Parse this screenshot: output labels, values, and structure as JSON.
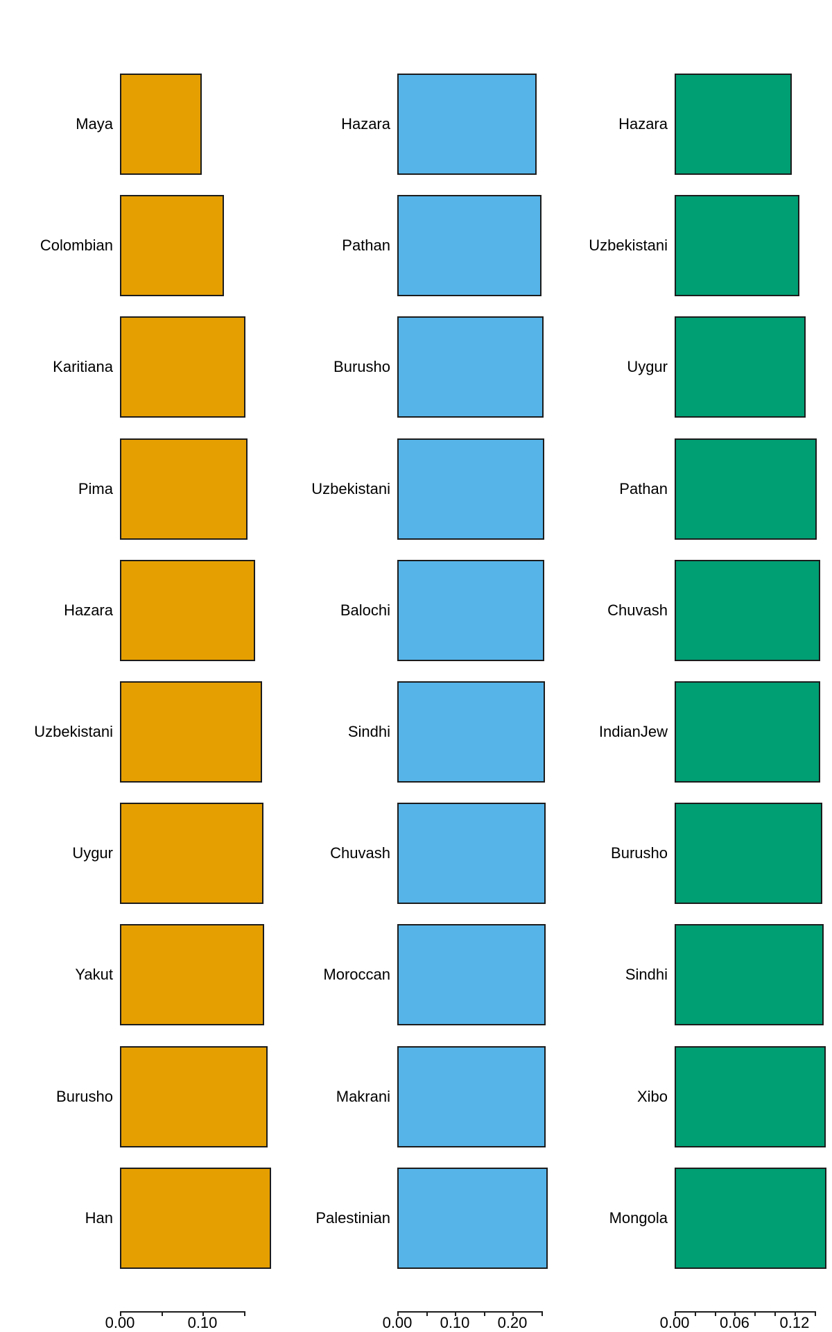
{
  "figure": {
    "background": "#ffffff",
    "axis_color": "#1c1c1c",
    "text_color": "#000000"
  },
  "chart_data": [
    {
      "type": "bar",
      "orientation": "horizontal",
      "panel": "left",
      "bar_color": "#E69F00",
      "categories": [
        "Maya",
        "Colombian",
        "Karitiana",
        "Pima",
        "Hazara",
        "Uzbekistani",
        "Uygur",
        "Yakut",
        "Burusho",
        "Han"
      ],
      "values": [
        0.099,
        0.126,
        0.152,
        0.155,
        0.164,
        0.172,
        0.174,
        0.175,
        0.179,
        0.183
      ],
      "xlim": [
        0,
        0.15
      ],
      "tick_step": 0.05,
      "tick_labels": [
        {
          "at": 0,
          "text": "0.00"
        },
        {
          "at": 0.1,
          "text": "0.10"
        }
      ],
      "grid": false,
      "legend": false
    },
    {
      "type": "bar",
      "orientation": "horizontal",
      "panel": "middle",
      "bar_color": "#56B4E9",
      "categories": [
        "Hazara",
        "Pathan",
        "Burusho",
        "Uzbekistani",
        "Balochi",
        "Sindhi",
        "Chuvash",
        "Moroccan",
        "Makrani",
        "Palestinian"
      ],
      "values": [
        0.242,
        0.251,
        0.254,
        0.256,
        0.256,
        0.257,
        0.258,
        0.258,
        0.258,
        0.262
      ],
      "xlim": [
        0,
        0.25
      ],
      "tick_step": 0.05,
      "tick_labels": [
        {
          "at": 0,
          "text": "0.00"
        },
        {
          "at": 0.1,
          "text": "0.10"
        },
        {
          "at": 0.2,
          "text": "0.20"
        }
      ],
      "grid": false,
      "legend": false
    },
    {
      "type": "bar",
      "orientation": "horizontal",
      "panel": "right",
      "bar_color": "#009E73",
      "categories": [
        "Hazara",
        "Uzbekistani",
        "Uygur",
        "Pathan",
        "Chuvash",
        "IndianJew",
        "Burusho",
        "Sindhi",
        "Xibo",
        "Mongola"
      ],
      "values": [
        0.117,
        0.125,
        0.131,
        0.142,
        0.146,
        0.146,
        0.148,
        0.149,
        0.151,
        0.152
      ],
      "xlim": [
        0,
        0.14
      ],
      "tick_step": 0.02,
      "tick_labels": [
        {
          "at": 0,
          "text": "0.00"
        },
        {
          "at": 0.06,
          "text": "0.06"
        },
        {
          "at": 0.12,
          "text": "0.12"
        }
      ],
      "grid": false,
      "legend": false
    }
  ]
}
